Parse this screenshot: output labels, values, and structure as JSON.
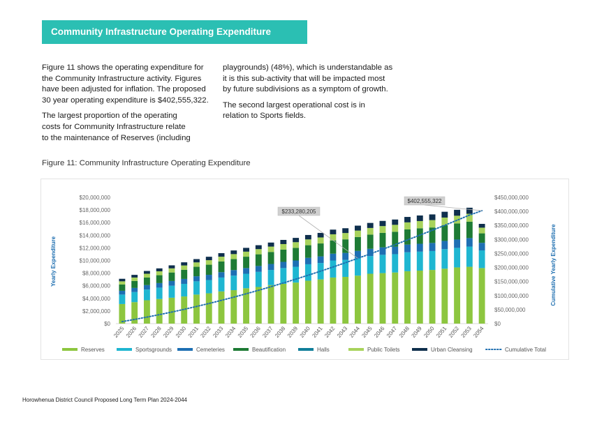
{
  "section_title": "Community Infrastructure Operating Expenditure",
  "body": {
    "col1": [
      "Figure 11 shows the operating expenditure for\nthe Community Infrastructure activity. Figures\nhave been adjusted for inflation. The proposed\n30 year operating expenditure is $402,555,322.",
      "The largest proportion of the operating\ncosts for Community Infrastructure relate\nto the maintenance of Reserves (including"
    ],
    "col2": [
      "playgrounds) (48%), which is understandable as\nit is this sub-activity that will be impacted most\nby future subdivisions as a symptom of growth.",
      "The second largest operational cost is in\nrelation to Sports fields."
    ]
  },
  "figure_caption": "Figure 11: Community Infrastructure Operating Expenditure",
  "footer": "Horowhenua District Council Proposed Long Term Plan 2024-2044",
  "colors": {
    "banner": "#2bbfb3",
    "Reserves": "#8dc63f",
    "Sportsgrounds": "#1fb6d1",
    "Cemeteries": "#1e6fb3",
    "Beautification": "#1e7b35",
    "Halls": "#117f9a",
    "Public Toilets": "#a8d35c",
    "Urban Cleansing": "#0f2f4d",
    "Cumulative Total": "#1f6fb0"
  },
  "chart_data": {
    "type": "bar",
    "stacked": true,
    "title": "",
    "xlabel": "",
    "ylabel": "Yearly Expenditure",
    "y2label": "Cumulative Yearly Expenditure",
    "ylim": [
      0,
      20000000
    ],
    "y2lim": [
      0,
      450000000
    ],
    "yticks": [
      "$0",
      "$2,000,000",
      "$4,000,000",
      "$6,000,000",
      "$8,000,000",
      "$10,000,000",
      "$12,000,000",
      "$14,000,000",
      "$16,000,000",
      "$18,000,000",
      "$20,000,000"
    ],
    "y2ticks": [
      "$0",
      "$50,000,000",
      "$100,000,000",
      "$150,000,000",
      "$200,000,000",
      "$250,000,000",
      "$300,000,000",
      "$350,000,000",
      "$400,000,000",
      "$450,000,000"
    ],
    "legend_position": "bottom",
    "grid": false,
    "categories": [
      "2025",
      "2026",
      "2027",
      "2028",
      "2029",
      "2030",
      "2031",
      "2032",
      "2033",
      "2034",
      "2035",
      "2036",
      "2037",
      "2038",
      "2039",
      "2040",
      "2041",
      "2042",
      "2043",
      "2044",
      "2045",
      "2046",
      "2047",
      "2048",
      "2049",
      "2050",
      "2051",
      "2052",
      "2053",
      "2054"
    ],
    "series": [
      {
        "name": "Reserves",
        "values": [
          3100000,
          3400000,
          3700000,
          3900000,
          4100000,
          4300000,
          4600000,
          4800000,
          5100000,
          5300000,
          5600000,
          5800000,
          6100000,
          6300000,
          6500000,
          6800000,
          7000000,
          7300000,
          7400000,
          7600000,
          7900000,
          8000000,
          8100000,
          8300000,
          8400000,
          8500000,
          8700000,
          8900000,
          9000000,
          8800000
        ]
      },
      {
        "name": "Sportsgrounds",
        "values": [
          1500000,
          1600000,
          1700000,
          1800000,
          1900000,
          2000000,
          2100000,
          2100000,
          2200000,
          2300000,
          2300000,
          2400000,
          2400000,
          2500000,
          2500000,
          2600000,
          2600000,
          2700000,
          2700000,
          2800000,
          2800000,
          2900000,
          2900000,
          3000000,
          3000000,
          3000000,
          3100000,
          3100000,
          3200000,
          2800000
        ]
      },
      {
        "name": "Cemeteries",
        "values": [
          600000,
          650000,
          700000,
          720000,
          750000,
          780000,
          800000,
          830000,
          850000,
          880000,
          900000,
          930000,
          950000,
          980000,
          1000000,
          1020000,
          1050000,
          1080000,
          1100000,
          1120000,
          1150000,
          1180000,
          1200000,
          1220000,
          1250000,
          1280000,
          1300000,
          1320000,
          1350000,
          1200000
        ]
      },
      {
        "name": "Beautification",
        "values": [
          1000000,
          1100000,
          1200000,
          1250000,
          1350000,
          1450000,
          1500000,
          1600000,
          1700000,
          1750000,
          1800000,
          1850000,
          1900000,
          1950000,
          2000000,
          2000000,
          2050000,
          2100000,
          2150000,
          2200000,
          2250000,
          2300000,
          2350000,
          2400000,
          2450000,
          2450000,
          2500000,
          2550000,
          2600000,
          1500000
        ]
      },
      {
        "name": "Halls",
        "values": [
          0,
          0,
          0,
          0,
          0,
          0,
          0,
          0,
          0,
          0,
          0,
          0,
          0,
          0,
          0,
          0,
          0,
          0,
          0,
          0,
          0,
          0,
          0,
          0,
          0,
          0,
          0,
          0,
          0,
          0
        ]
      },
      {
        "name": "Public Toilets",
        "values": [
          500000,
          550000,
          600000,
          620000,
          650000,
          680000,
          700000,
          720000,
          750000,
          780000,
          800000,
          820000,
          850000,
          870000,
          900000,
          920000,
          950000,
          970000,
          1000000,
          1020000,
          1050000,
          1070000,
          1100000,
          1120000,
          1150000,
          1170000,
          1200000,
          1220000,
          1250000,
          900000
        ]
      },
      {
        "name": "Urban Cleansing",
        "values": [
          400000,
          420000,
          440000,
          460000,
          480000,
          500000,
          520000,
          540000,
          560000,
          580000,
          600000,
          620000,
          640000,
          660000,
          680000,
          700000,
          720000,
          740000,
          760000,
          780000,
          800000,
          820000,
          840000,
          860000,
          880000,
          900000,
          920000,
          940000,
          960000,
          600000
        ]
      }
    ],
    "line_series": {
      "name": "Cumulative Total",
      "axis": "right",
      "values": [
        7100000,
        14820000,
        23180000,
        31930000,
        41160000,
        50870000,
        61090000,
        71710000,
        82870000,
        94360000,
        106360000,
        118780000,
        131620000,
        144950000,
        158530000,
        172570000,
        186940000,
        201830000,
        217070000,
        232670000,
        248630000,
        264930000,
        281420000,
        298300000,
        315430000,
        332730000,
        350450000,
        368480000,
        386840000,
        402555322
      ]
    },
    "annotations": [
      {
        "text": "$233,280,205"
      },
      {
        "text": "$402,555,322"
      }
    ]
  }
}
